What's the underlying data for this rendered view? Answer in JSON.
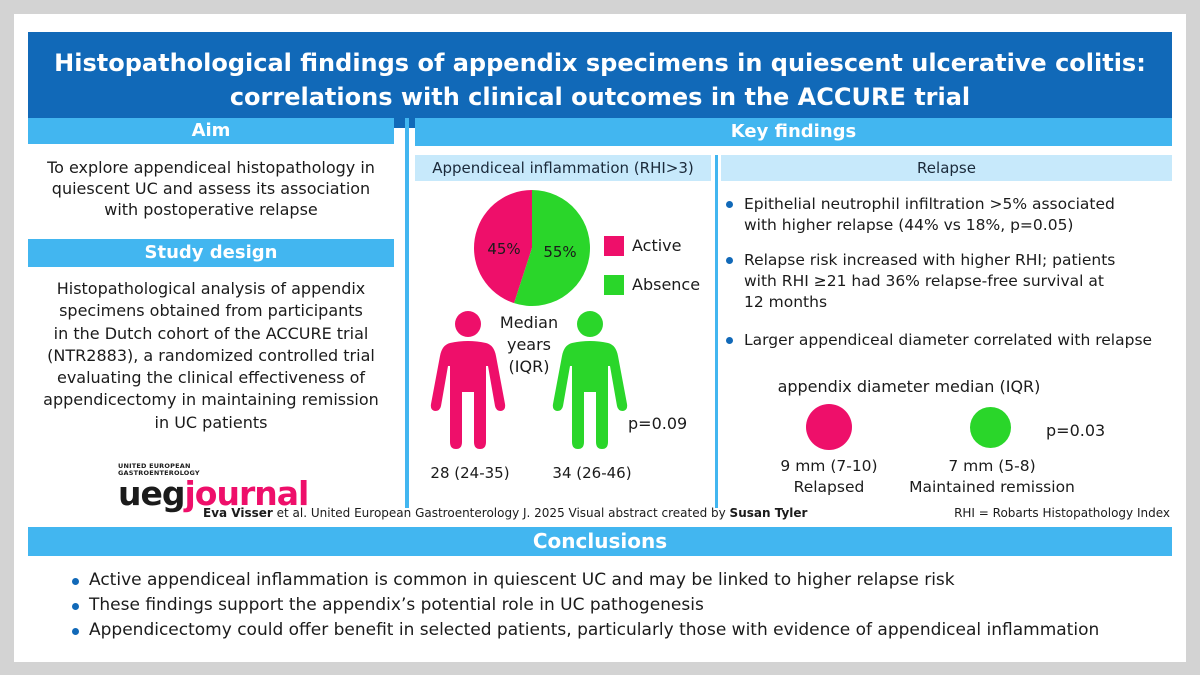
{
  "title": {
    "line1": "Histopathological findings of appendix specimens in quiescent ulcerative colitis:",
    "line2": "correlations with clinical outcomes in the ACCURE trial"
  },
  "aim": {
    "heading": "Aim",
    "text_lines": [
      "To explore appendiceal histopathology in",
      "quiescent UC and assess its association",
      "with postoperative relapse"
    ]
  },
  "study_design": {
    "heading": "Study design",
    "text_lines": [
      "Histopathological analysis of appendix",
      "specimens obtained from participants",
      "in the Dutch cohort of the ACCURE trial",
      "(NTR2883), a randomized controlled trial",
      "evaluating the clinical effectiveness of",
      "appendicectomy in maintaining remission",
      "in UC patients"
    ]
  },
  "key_findings": {
    "heading": "Key findings",
    "inflammation": {
      "heading": "Appendiceal inflammation (RHI>3)",
      "pie": {
        "active_label": "45%",
        "absence_label": "55%",
        "active_value": 45,
        "absence_value": 55
      },
      "legend": {
        "active": "Active",
        "absence": "Absence"
      },
      "median_lines": [
        "Median",
        "years",
        "(IQR)"
      ],
      "active_age": "28 (24-35)",
      "absence_age": "34 (26-46)",
      "p_value": "p=0.09"
    },
    "relapse": {
      "heading": "Relapse",
      "bullets": [
        [
          "Epithelial neutrophil infiltration >5% associated",
          "with higher relapse (44% vs 18%, p=0.05)"
        ],
        [
          "Relapse risk increased with higher RHI; patients",
          "with RHI ≥21 had 36% relapse-free survival at",
          "12 months"
        ],
        [
          "Larger appendiceal diameter correlated with relapse"
        ]
      ],
      "diameter_title": "appendix diameter median (IQR)",
      "relapsed_value": "9 mm (7-10)",
      "relapsed_label": "Relapsed",
      "remission_value": "7 mm (5-8)",
      "remission_label": "Maintained remission",
      "p_value": "p=0.03"
    }
  },
  "logo": {
    "line1": "UNITED EUROPEAN",
    "line2": "GASTROENTEROLOGY",
    "ueg": "ueg",
    "journal": "journal"
  },
  "credit": {
    "author": "Eva Visser",
    "middle": " et al. United European Gastroenterology J. 2025 Visual abstract created by ",
    "creator": "Susan Tyler"
  },
  "rhi_note": "RHI = Robarts Histopathology Index",
  "conclusions": {
    "heading": "Conclusions",
    "items": [
      "Active appendiceal inflammation is common in quiescent UC and may be linked to higher relapse risk",
      "These findings support the appendix’s potential role in UC pathogenesis",
      "Appendicectomy could offer benefit in selected patients, particularly those with evidence of appendiceal inflammation"
    ]
  },
  "colors": {
    "title_bg": "#1169b8",
    "band": "#42b6f0",
    "band_light": "#c7e9fb",
    "active": "#ee0f6a",
    "absence": "#2ad62a",
    "frame": "#d3d3d3"
  }
}
